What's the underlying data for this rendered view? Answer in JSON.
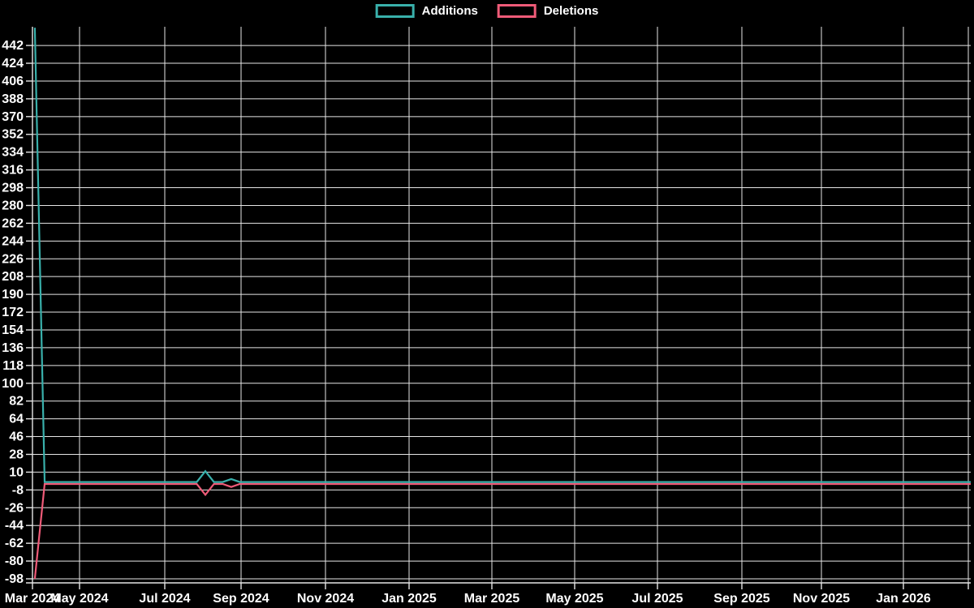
{
  "chart_data": {
    "type": "line",
    "title": "",
    "legend_position": "top-center",
    "grid": true,
    "background_color": "#000000",
    "grid_color": "#e6e6e6",
    "text_color": "#ffffff",
    "x_tick_labels": [
      "Mar 2024",
      "May 2024",
      "Jul 2024",
      "Sep 2024",
      "Nov 2024",
      "Jan 2025",
      "Mar 2025",
      "May 2025",
      "Jul 2025",
      "Sep 2025",
      "Nov 2025",
      "Jan 2026"
    ],
    "y_tick_labels": [
      442,
      424,
      406,
      388,
      370,
      352,
      334,
      316,
      298,
      280,
      262,
      244,
      226,
      208,
      190,
      172,
      154,
      136,
      118,
      100,
      82,
      64,
      46,
      28,
      10,
      -8,
      -26,
      -44,
      -62,
      -80,
      -98
    ],
    "y_tick_step": 18,
    "ylim": [
      -102,
      461
    ],
    "x_range": [
      "Mar 2024",
      "Feb 2026"
    ],
    "series": [
      {
        "name": "Additions",
        "color": "#39b0ab",
        "points": [
          [
            "2024-03-30",
            460
          ],
          [
            "2024-04-06",
            0
          ],
          [
            "2024-07-27",
            0
          ],
          [
            "2024-08-03",
            11
          ],
          [
            "2024-08-10",
            0
          ],
          [
            "2024-08-17",
            0
          ],
          [
            "2024-08-24",
            3
          ],
          [
            "2024-08-31",
            0
          ],
          [
            "2026-02-21",
            0
          ]
        ]
      },
      {
        "name": "Deletions",
        "color": "#ef5b78",
        "points": [
          [
            "2024-03-30",
            -98
          ],
          [
            "2024-04-06",
            -2
          ],
          [
            "2024-07-27",
            -2
          ],
          [
            "2024-08-03",
            -13
          ],
          [
            "2024-08-10",
            -2
          ],
          [
            "2024-08-17",
            -2
          ],
          [
            "2024-08-24",
            -5
          ],
          [
            "2024-08-31",
            -2
          ],
          [
            "2026-02-21",
            -2
          ]
        ]
      }
    ],
    "note": "Weekly commit activity; all weeks between listed points are flat at ~0. Additions spike (~460) and Deletions spike (-98) occur at the first week, late Mar 2024; a diamond-shaped spike (+11/-13) appears in early Aug 2024 and a small lens (+3/-5) in late Aug 2024."
  }
}
